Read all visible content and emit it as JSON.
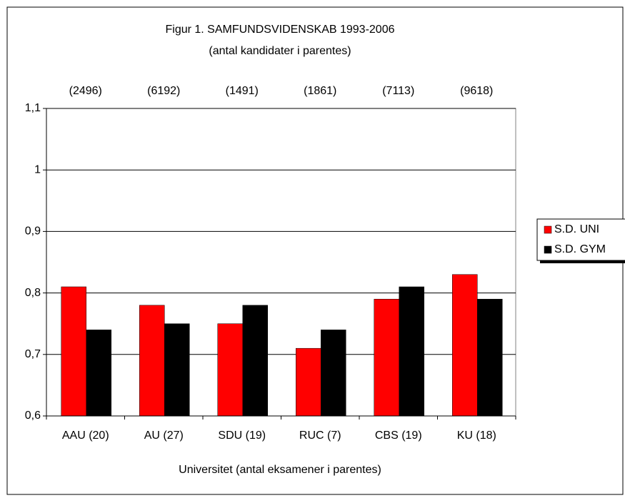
{
  "chart_data": {
    "type": "bar",
    "title": "Figur 1. SAMFUNDSVIDENSKAB 1993-2006",
    "subtitle": "(antal kandidater i parentes)",
    "x_label": "Universitet (antal eksamener i parentes)",
    "categories": [
      "AAU (20)",
      "AU (27)",
      "SDU (19)",
      "RUC (7)",
      "CBS (19)",
      "KU (18)"
    ],
    "annotations": [
      "(2496)",
      "(6192)",
      "(1491)",
      "(1861)",
      "(7113)",
      "(9618)"
    ],
    "series": [
      {
        "name": "S.D. UNI",
        "color": "#ff0000",
        "values": [
          0.81,
          0.78,
          0.75,
          0.71,
          0.79,
          0.83
        ]
      },
      {
        "name": "S.D. GYM",
        "color": "#000000",
        "values": [
          0.74,
          0.75,
          0.78,
          0.74,
          0.81,
          0.79
        ]
      }
    ],
    "ylim": [
      0.6,
      1.1
    ],
    "yticks": [
      {
        "value": 0.6,
        "label": "0,6"
      },
      {
        "value": 0.7,
        "label": "0,7"
      },
      {
        "value": 0.8,
        "label": "0,8"
      },
      {
        "value": 0.9,
        "label": "0,9"
      },
      1,
      {
        "value": 1.1,
        "label": "1,1"
      }
    ],
    "grid": true,
    "legend": "right"
  }
}
